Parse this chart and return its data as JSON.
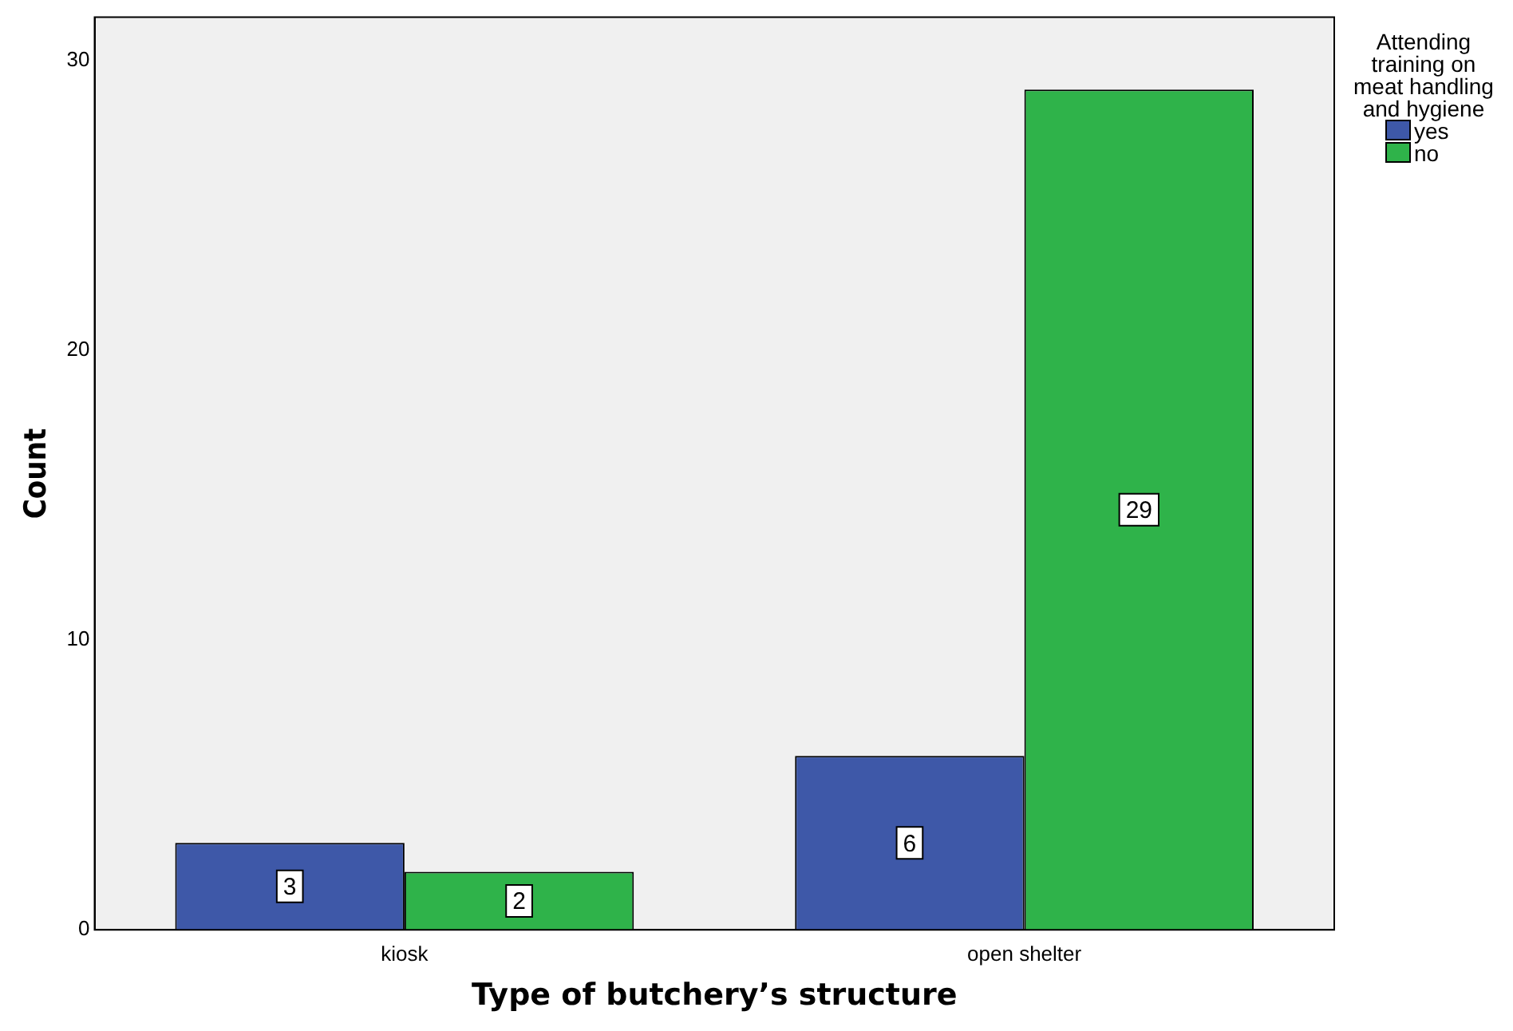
{
  "chart_data": {
    "type": "bar",
    "xlabel": "Type of butchery’s structure",
    "ylabel": "Count",
    "legend_title": "Attending training on meat handling and hygiene",
    "categories": [
      "kiosk",
      "open shelter"
    ],
    "series": [
      {
        "name": "yes",
        "color": "#3e58a8",
        "values": [
          3,
          6
        ]
      },
      {
        "name": "no",
        "color": "#2fb34a",
        "values": [
          2,
          29
        ]
      }
    ],
    "ylim": [
      0,
      31.5
    ],
    "yticks": [
      0,
      10,
      20,
      30
    ],
    "grid": false,
    "legend": "top right",
    "data_labels": true
  }
}
